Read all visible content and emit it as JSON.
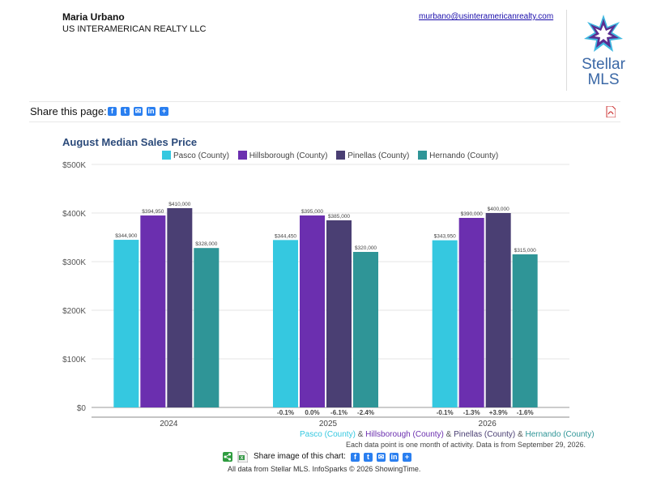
{
  "agent": {
    "name": "Maria Urbano",
    "company": "US INTERAMERICAN REALTY LLC",
    "email": "murbano@usinteramericanrealty.com"
  },
  "logo": {
    "line1": "Stellar",
    "line2": "MLS"
  },
  "share": {
    "label": "Share this page:",
    "icons": [
      "facebook-icon",
      "twitter-icon",
      "email-icon",
      "linkedin-icon",
      "share-plus-icon"
    ]
  },
  "chart_data": {
    "type": "bar",
    "title": "August Median Sales Price",
    "categories": [
      "2024",
      "2025",
      "2026"
    ],
    "series": [
      {
        "name": "Pasco (County)",
        "color": "#35c8e0",
        "values": [
          344900,
          344450,
          343950
        ],
        "labels": [
          "$344,900",
          "$344,450",
          "$343,950"
        ],
        "changes": [
          "",
          "-0.1%",
          "-0.1%"
        ]
      },
      {
        "name": "Hillsborough (County)",
        "color": "#6b2faf",
        "values": [
          394950,
          395000,
          390000
        ],
        "labels": [
          "$394,950",
          "$395,000",
          "$390,000"
        ],
        "changes": [
          "",
          "0.0%",
          "-1.3%"
        ]
      },
      {
        "name": "Pinellas (County)",
        "color": "#4a3f73",
        "values": [
          410000,
          385000,
          400000
        ],
        "labels": [
          "$410,000",
          "$385,000",
          "$400,000"
        ],
        "changes": [
          "",
          "-6.1%",
          "+3.9%"
        ]
      },
      {
        "name": "Hernando (County)",
        "color": "#2f9597",
        "values": [
          328000,
          320000,
          315000
        ],
        "labels": [
          "$328,000",
          "$320,000",
          "$315,000"
        ],
        "changes": [
          "",
          "-2.4%",
          "-1.6%"
        ]
      }
    ],
    "ylim": [
      0,
      500000
    ],
    "yticks": [
      "$0",
      "$100K",
      "$200K",
      "$300K",
      "$400K",
      "$500K"
    ],
    "ytick_values": [
      0,
      100000,
      200000,
      300000,
      400000,
      500000
    ],
    "grid": true,
    "legend": "top"
  },
  "footnote": {
    "series_line": [
      {
        "text": "Pasco (County)",
        "color": "#35c8e0"
      },
      {
        "text": " & ",
        "color": "#555555"
      },
      {
        "text": "Hillsborough (County)",
        "color": "#6b2faf"
      },
      {
        "text": " & ",
        "color": "#555555"
      },
      {
        "text": "Pinellas (County)",
        "color": "#4a3f73"
      },
      {
        "text": " & ",
        "color": "#555555"
      },
      {
        "text": "Hernando (County)",
        "color": "#2f9597"
      }
    ],
    "data_note": "Each data point is one month of activity. Data is from September 29, 2026."
  },
  "share_image": {
    "label": "Share image of this chart:"
  },
  "credits": "All data from Stellar MLS. InfoSparks © 2026 ShowingTime."
}
